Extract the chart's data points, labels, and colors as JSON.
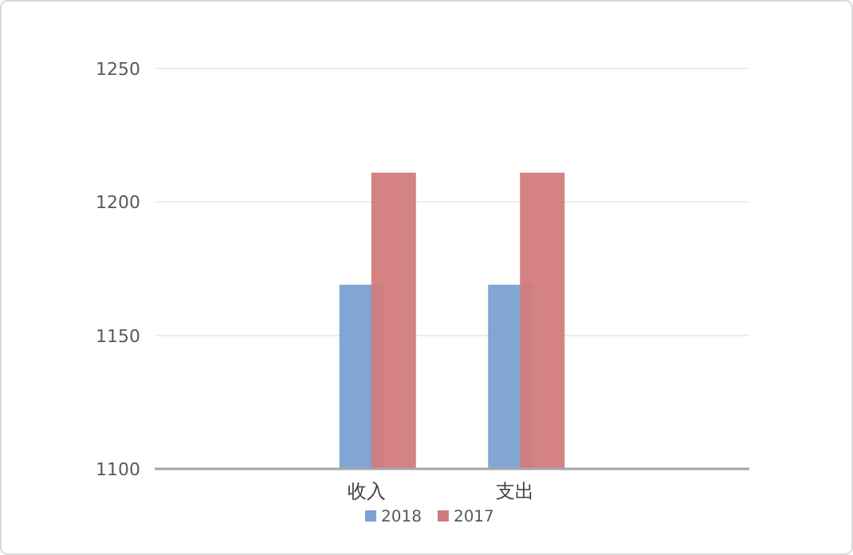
{
  "chart_data": {
    "type": "bar",
    "categories": [
      null,
      "收入",
      "支出",
      null
    ],
    "series": [
      {
        "name": "2018",
        "color": "#7ba1d2",
        "values": [
          null,
          1169,
          1169,
          null
        ]
      },
      {
        "name": "2017",
        "color": "#d27b7b",
        "values": [
          null,
          1211,
          1211,
          null
        ]
      }
    ],
    "ylim": [
      1100,
      1250
    ],
    "yticks": [
      1100,
      1150,
      1200,
      1250
    ],
    "grid": "y",
    "legend": "bottom"
  }
}
